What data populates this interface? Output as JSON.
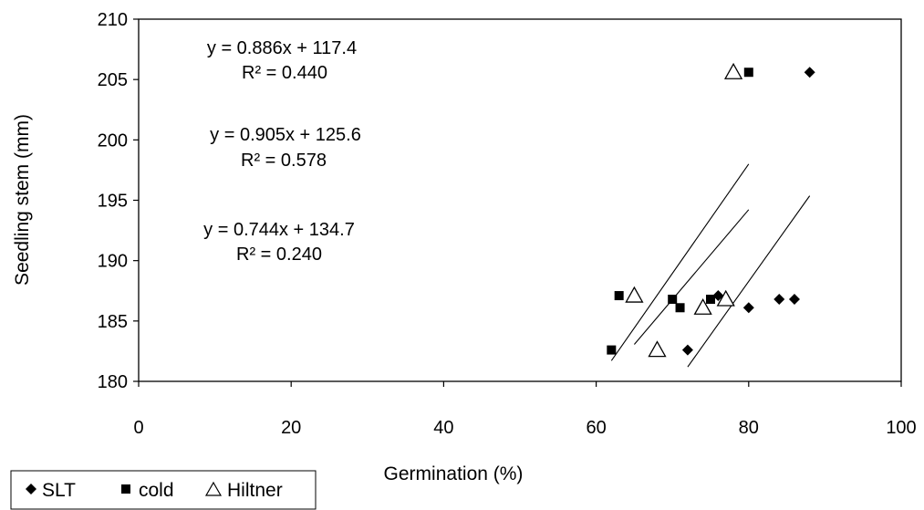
{
  "chart_data": {
    "type": "scatter",
    "xlabel": "Germination (%)",
    "ylabel": "Seedling stem (mm)",
    "xlim": [
      0,
      100
    ],
    "ylim": [
      180,
      210
    ],
    "x_ticks": [
      "0",
      "20",
      "40",
      "60",
      "80",
      "100"
    ],
    "y_ticks": [
      "180",
      "185",
      "190",
      "195",
      "200",
      "205",
      "210"
    ],
    "grid": false,
    "legend_position": "bottom-left",
    "series": [
      {
        "name": "SLT",
        "marker": "diamond",
        "points": [
          [
            72,
            182.6
          ],
          [
            76,
            187.1
          ],
          [
            80,
            186.1
          ],
          [
            84,
            186.8
          ],
          [
            86,
            186.8
          ],
          [
            88,
            205.6
          ]
        ],
        "trendline": {
          "x_range": [
            72,
            88
          ],
          "slope": 0.886,
          "intercept": 117.4
        }
      },
      {
        "name": "cold",
        "marker": "square",
        "points": [
          [
            62,
            182.6
          ],
          [
            63,
            187.1
          ],
          [
            70,
            186.8
          ],
          [
            71,
            186.1
          ],
          [
            75,
            186.8
          ],
          [
            80,
            205.6
          ]
        ],
        "trendline": {
          "x_range": [
            62,
            80
          ],
          "slope": 0.905,
          "intercept": 125.6
        }
      },
      {
        "name": "Hiltner",
        "marker": "triangle",
        "points": [
          [
            65,
            187.1
          ],
          [
            68,
            182.6
          ],
          [
            74,
            186.1
          ],
          [
            77,
            186.8
          ],
          [
            78,
            205.6
          ]
        ],
        "trendline": {
          "x_range": [
            65,
            80
          ],
          "slope": 0.744,
          "intercept": 134.7
        }
      }
    ],
    "annotations": [
      {
        "equation": "y = 0.886x + 117.4",
        "r2": "R² = 0.440"
      },
      {
        "equation": "y = 0.905x + 125.6",
        "r2": "R² = 0.578"
      },
      {
        "equation": "y = 0.744x + 134.7",
        "r2": "R² = 0.240"
      }
    ]
  }
}
